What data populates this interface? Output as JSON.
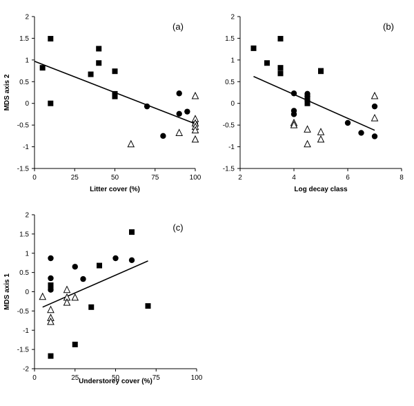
{
  "chart_data": [
    {
      "type": "scatter",
      "panel_label": "(a)",
      "xlabel": "Litter cover (%)",
      "ylabel": "MDS axis 2",
      "xlim": [
        0,
        100
      ],
      "ylim": [
        -1.5,
        2
      ],
      "xticks": [
        "0",
        "25",
        "50",
        "75",
        "100"
      ],
      "yticks": [
        "2",
        "1.5",
        "1",
        "0.5",
        "0",
        "-0.5",
        "-1",
        "-1.5"
      ],
      "grid": false,
      "trendline": {
        "x": [
          0,
          100
        ],
        "y": [
          0.97,
          -0.47
        ]
      },
      "series": [
        {
          "marker": "square",
          "x": [
            5,
            10,
            10,
            35,
            40,
            40,
            50,
            50,
            50
          ],
          "y": [
            0.82,
            1.49,
            0.0,
            0.67,
            0.93,
            1.26,
            0.74,
            0.22,
            0.16
          ]
        },
        {
          "marker": "circle",
          "x": [
            70,
            80,
            90,
            90,
            95,
            100
          ],
          "y": [
            -0.07,
            -0.75,
            0.23,
            -0.24,
            -0.19,
            -0.48
          ]
        },
        {
          "marker": "triangle",
          "x": [
            60,
            90,
            100,
            100,
            100,
            100,
            100,
            100
          ],
          "y": [
            -0.94,
            -0.68,
            0.17,
            -0.36,
            -0.46,
            -0.54,
            -0.62,
            -0.83
          ]
        }
      ]
    },
    {
      "type": "scatter",
      "panel_label": "(b)",
      "xlabel": "Log decay class",
      "ylabel": "",
      "xlim": [
        2,
        8
      ],
      "ylim": [
        -1.5,
        2
      ],
      "xticks": [
        "2",
        "4",
        "6",
        "8"
      ],
      "yticks": [
        "2",
        "1.5",
        "1",
        "0.5",
        "0",
        "-0.5",
        "-1",
        "-1.5"
      ],
      "grid": false,
      "trendline": {
        "x": [
          2.5,
          7
        ],
        "y": [
          0.62,
          -0.62
        ]
      },
      "series": [
        {
          "marker": "square",
          "x": [
            2.5,
            3,
            3.5,
            3.5,
            3.5,
            4.5,
            4.5,
            5,
            5
          ],
          "y": [
            1.27,
            0.93,
            1.49,
            0.82,
            0.69,
            0.14,
            0.0,
            0.75,
            0.74
          ]
        },
        {
          "marker": "circle",
          "x": [
            4,
            4,
            4,
            4.5,
            4.5,
            4.5,
            6,
            6.5,
            7,
            7
          ],
          "y": [
            0.23,
            -0.17,
            -0.25,
            0.22,
            0.16,
            0.06,
            -0.45,
            -0.68,
            -0.07,
            -0.76
          ]
        },
        {
          "marker": "triangle",
          "x": [
            4,
            4,
            4.5,
            4.5,
            5,
            5,
            7,
            7
          ],
          "y": [
            -0.45,
            -0.5,
            -0.6,
            -0.94,
            -0.66,
            -0.83,
            0.17,
            -0.34
          ]
        }
      ]
    },
    {
      "type": "scatter",
      "panel_label": "(c)",
      "xlabel": "Understorey cover (%)",
      "ylabel": "MDS axis 1",
      "xlim": [
        0,
        100
      ],
      "ylim": [
        -2,
        2
      ],
      "xticks": [
        "0",
        "25",
        "50",
        "75",
        "100"
      ],
      "yticks": [
        "2",
        "1.5",
        "1",
        "0.5",
        "0",
        "-0.5",
        "-1",
        "-1.5",
        "-2"
      ],
      "grid": false,
      "trendline": {
        "x": [
          5,
          70
        ],
        "y": [
          -0.4,
          0.8
        ]
      },
      "series": [
        {
          "marker": "square",
          "x": [
            10,
            10,
            10,
            25,
            35,
            40,
            60,
            70
          ],
          "y": [
            0.17,
            0.1,
            -1.67,
            -1.37,
            -0.4,
            0.68,
            1.55,
            -0.37
          ]
        },
        {
          "marker": "circle",
          "x": [
            10,
            10,
            10,
            25,
            30,
            50,
            60
          ],
          "y": [
            0.87,
            0.35,
            0.05,
            0.65,
            0.33,
            0.87,
            0.82
          ]
        },
        {
          "marker": "triangle",
          "x": [
            5,
            10,
            10,
            10,
            20,
            20,
            20,
            25
          ],
          "y": [
            -0.13,
            -0.47,
            -0.68,
            -0.78,
            0.05,
            -0.15,
            -0.28,
            -0.15
          ]
        }
      ]
    }
  ]
}
